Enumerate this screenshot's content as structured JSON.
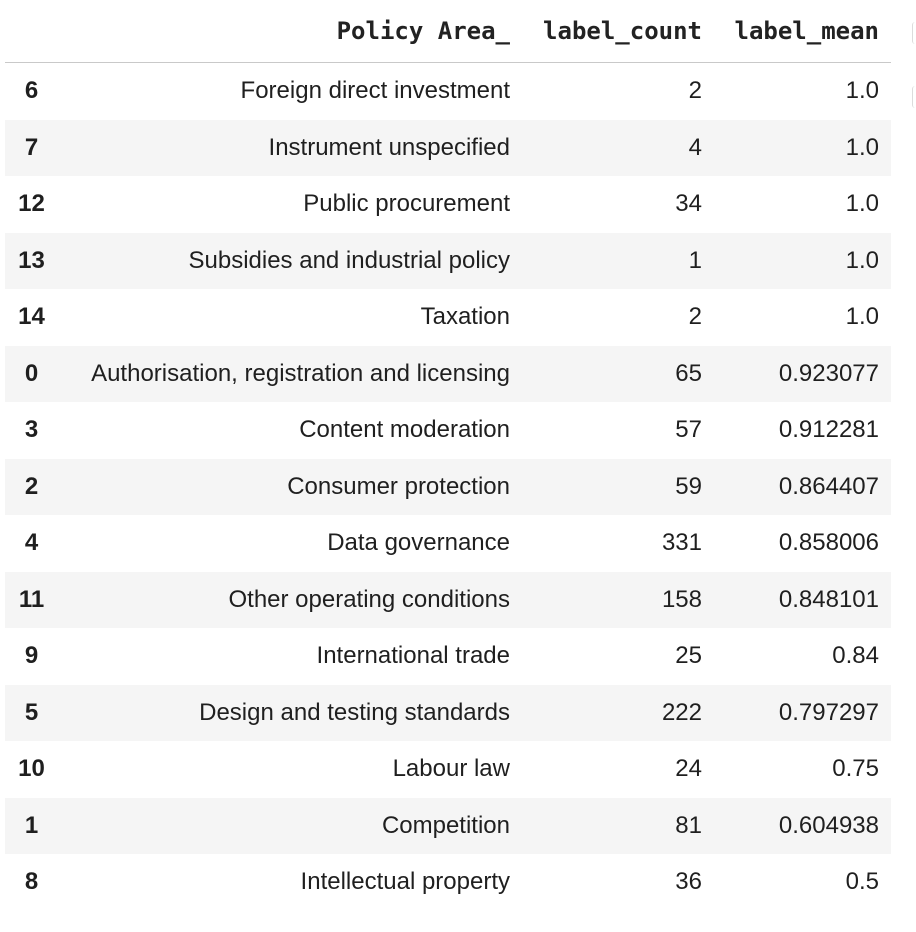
{
  "table": {
    "columns": {
      "index": "",
      "policy_area": "Policy Area_",
      "label_count": "label_count",
      "label_mean": "label_mean"
    },
    "rows": [
      {
        "index": "6",
        "policy_area": "Foreign direct investment",
        "label_count": "2",
        "label_mean": "1.0"
      },
      {
        "index": "7",
        "policy_area": "Instrument unspecified",
        "label_count": "4",
        "label_mean": "1.0"
      },
      {
        "index": "12",
        "policy_area": "Public procurement",
        "label_count": "34",
        "label_mean": "1.0"
      },
      {
        "index": "13",
        "policy_area": "Subsidies and industrial policy",
        "label_count": "1",
        "label_mean": "1.0"
      },
      {
        "index": "14",
        "policy_area": "Taxation",
        "label_count": "2",
        "label_mean": "1.0"
      },
      {
        "index": "0",
        "policy_area": "Authorisation, registration and licensing",
        "label_count": "65",
        "label_mean": "0.923077"
      },
      {
        "index": "3",
        "policy_area": "Content moderation",
        "label_count": "57",
        "label_mean": "0.912281"
      },
      {
        "index": "2",
        "policy_area": "Consumer protection",
        "label_count": "59",
        "label_mean": "0.864407"
      },
      {
        "index": "4",
        "policy_area": "Data governance",
        "label_count": "331",
        "label_mean": "0.858006"
      },
      {
        "index": "11",
        "policy_area": "Other operating conditions",
        "label_count": "158",
        "label_mean": "0.848101"
      },
      {
        "index": "9",
        "policy_area": "International trade",
        "label_count": "25",
        "label_mean": "0.84"
      },
      {
        "index": "5",
        "policy_area": "Design and testing standards",
        "label_count": "222",
        "label_mean": "0.797297"
      },
      {
        "index": "10",
        "policy_area": "Labour law",
        "label_count": "24",
        "label_mean": "0.75"
      },
      {
        "index": "1",
        "policy_area": "Competition",
        "label_count": "81",
        "label_mean": "0.604938"
      },
      {
        "index": "8",
        "policy_area": "Intellectual property",
        "label_count": "36",
        "label_mean": "0.5"
      }
    ]
  }
}
